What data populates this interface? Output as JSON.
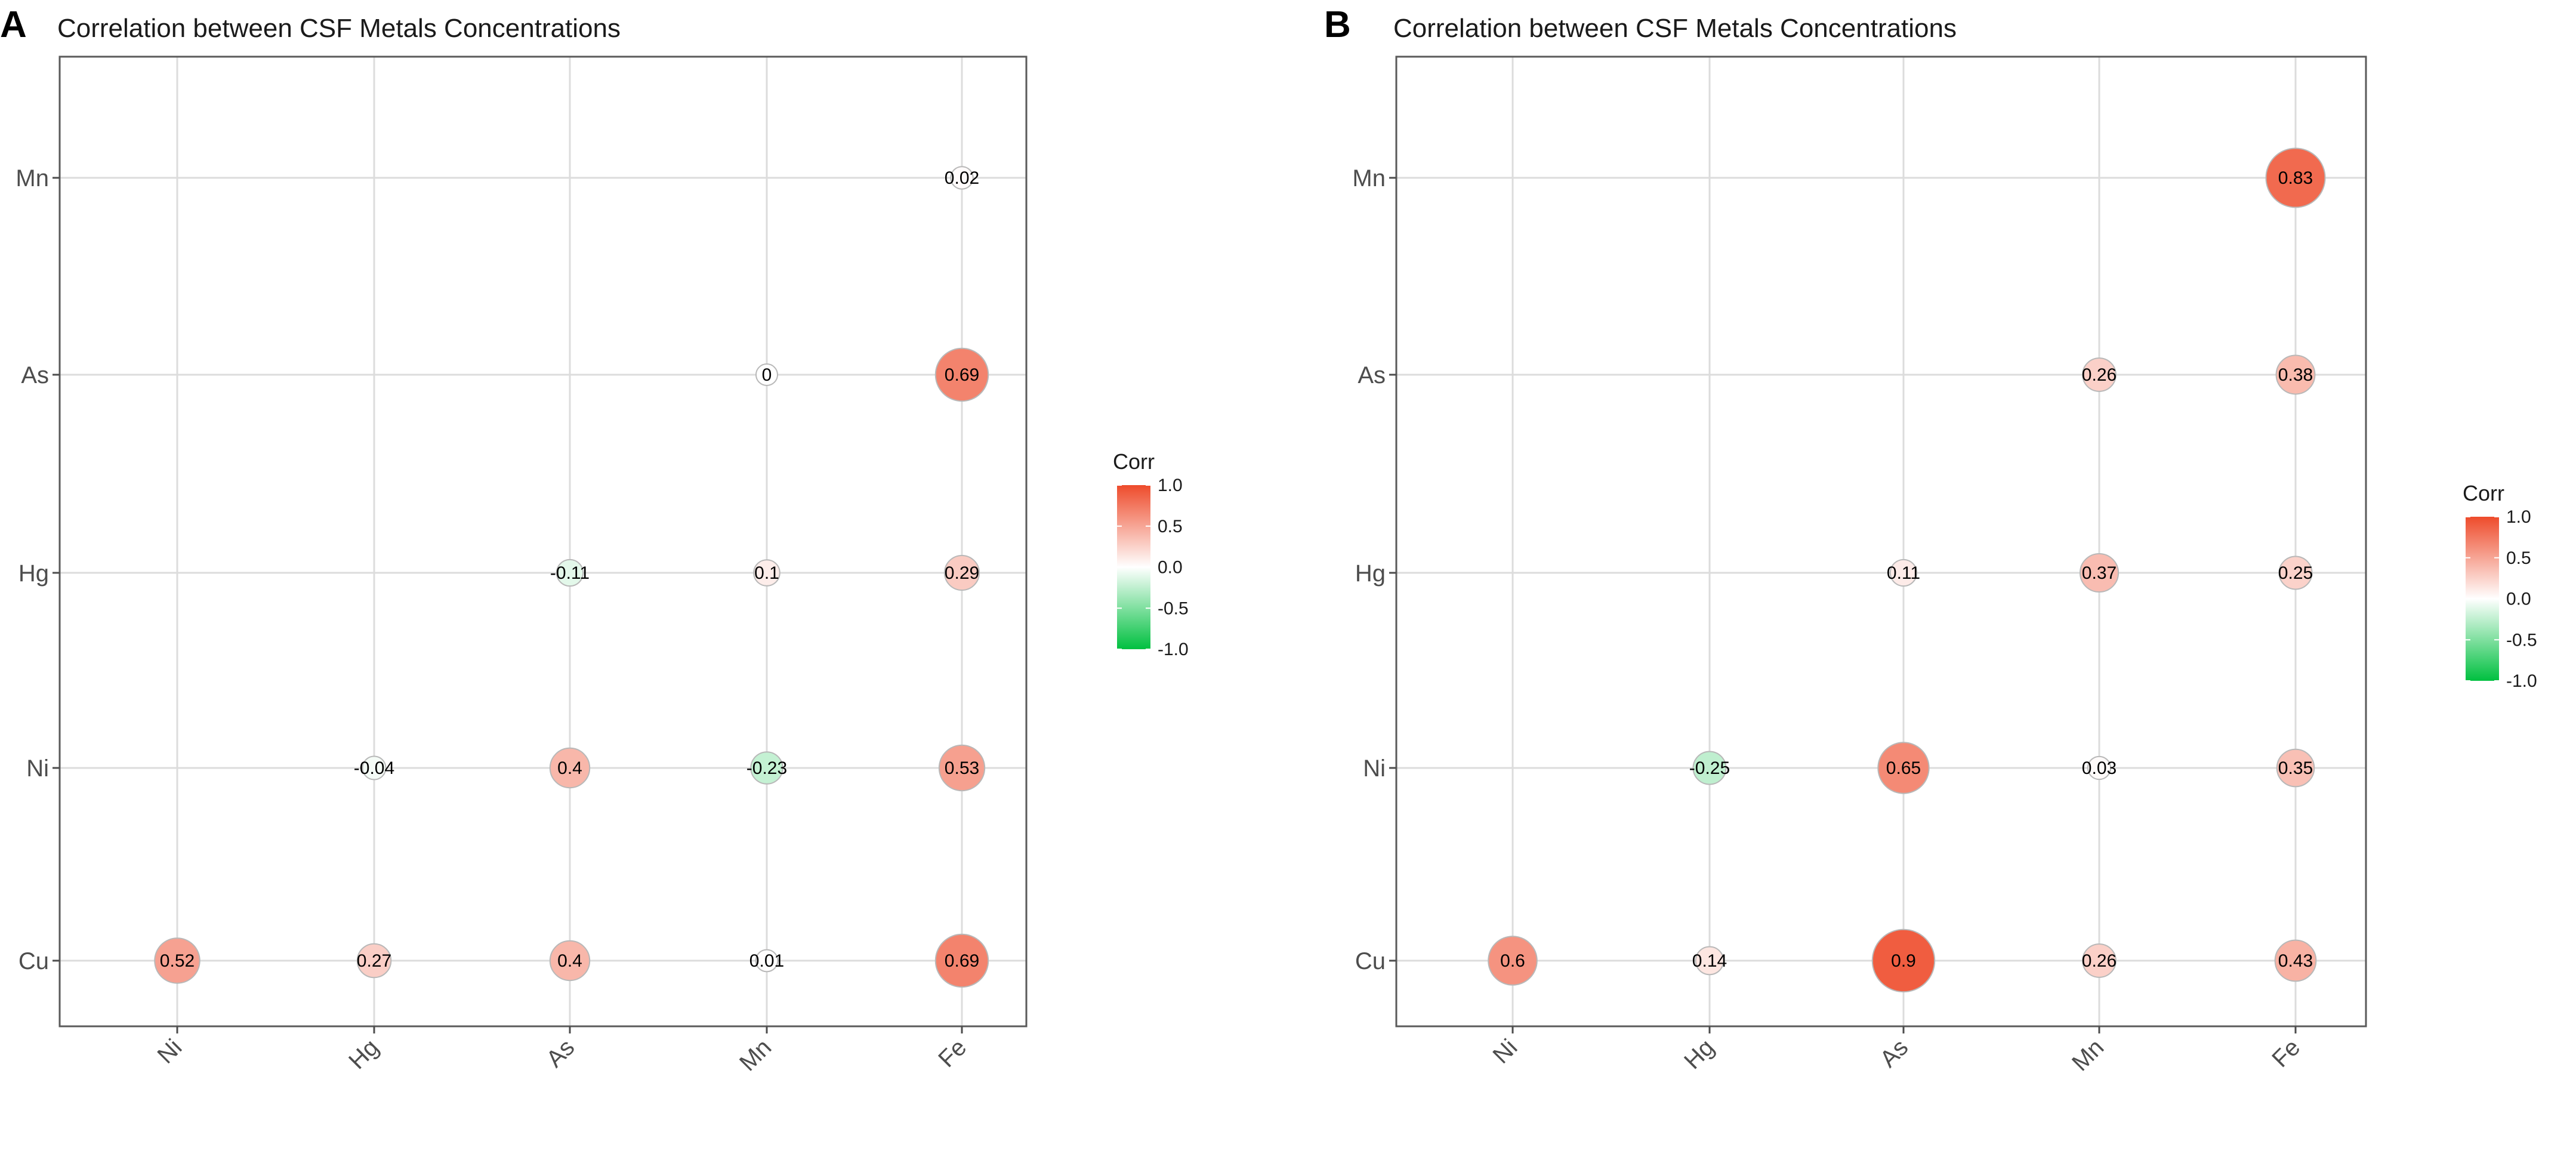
{
  "colors": {
    "positive": "#EE4B2B",
    "neutral": "#FFFFFF",
    "negative": "#00C040",
    "grid": "#DCDCDC"
  },
  "chart_data": [
    {
      "type": "scatter",
      "panel": "A",
      "title": "Correlation between CSF Metals Concentrations",
      "x_categories": [
        "Ni",
        "Hg",
        "As",
        "Mn",
        "Fe"
      ],
      "y_categories": [
        "Cu",
        "Ni",
        "Hg",
        "As",
        "Mn"
      ],
      "legend": {
        "title": "Corr",
        "ticks": [
          "1.0",
          "0.5",
          "0.0",
          "-0.5",
          "-1.0"
        ],
        "range": [
          -1,
          1
        ],
        "position": "right"
      },
      "points": [
        {
          "x": "Fe",
          "y": "Mn",
          "value": 0.02,
          "label": "0.02"
        },
        {
          "x": "Mn",
          "y": "As",
          "value": 0,
          "label": "0"
        },
        {
          "x": "Fe",
          "y": "As",
          "value": 0.69,
          "label": "0.69"
        },
        {
          "x": "As",
          "y": "Hg",
          "value": -0.11,
          "label": "-0.11"
        },
        {
          "x": "Mn",
          "y": "Hg",
          "value": 0.1,
          "label": "0.1"
        },
        {
          "x": "Fe",
          "y": "Hg",
          "value": 0.29,
          "label": "0.29"
        },
        {
          "x": "Hg",
          "y": "Ni",
          "value": -0.04,
          "label": "-0.04"
        },
        {
          "x": "As",
          "y": "Ni",
          "value": 0.4,
          "label": "0.4"
        },
        {
          "x": "Mn",
          "y": "Ni",
          "value": -0.23,
          "label": "-0.23"
        },
        {
          "x": "Fe",
          "y": "Ni",
          "value": 0.53,
          "label": "0.53"
        },
        {
          "x": "Ni",
          "y": "Cu",
          "value": 0.52,
          "label": "0.52"
        },
        {
          "x": "Hg",
          "y": "Cu",
          "value": 0.27,
          "label": "0.27"
        },
        {
          "x": "As",
          "y": "Cu",
          "value": 0.4,
          "label": "0.4"
        },
        {
          "x": "Mn",
          "y": "Cu",
          "value": 0.01,
          "label": "0.01"
        },
        {
          "x": "Fe",
          "y": "Cu",
          "value": 0.69,
          "label": "0.69"
        }
      ]
    },
    {
      "type": "scatter",
      "panel": "B",
      "title": "Correlation between CSF Metals Concentrations",
      "x_categories": [
        "Ni",
        "Hg",
        "As",
        "Mn",
        "Fe"
      ],
      "y_categories": [
        "Cu",
        "Ni",
        "Hg",
        "As",
        "Mn"
      ],
      "legend": {
        "title": "Corr",
        "ticks": [
          "1.0",
          "0.5",
          "0.0",
          "-0.5",
          "-1.0"
        ],
        "range": [
          -1,
          1
        ],
        "position": "right"
      },
      "points": [
        {
          "x": "Fe",
          "y": "Mn",
          "value": 0.83,
          "label": "0.83"
        },
        {
          "x": "Mn",
          "y": "As",
          "value": 0.26,
          "label": "0.26"
        },
        {
          "x": "Fe",
          "y": "As",
          "value": 0.38,
          "label": "0.38"
        },
        {
          "x": "As",
          "y": "Hg",
          "value": 0.11,
          "label": "0.11"
        },
        {
          "x": "Mn",
          "y": "Hg",
          "value": 0.37,
          "label": "0.37"
        },
        {
          "x": "Fe",
          "y": "Hg",
          "value": 0.25,
          "label": "0.25"
        },
        {
          "x": "Hg",
          "y": "Ni",
          "value": -0.25,
          "label": "-0.25"
        },
        {
          "x": "As",
          "y": "Ni",
          "value": 0.65,
          "label": "0.65"
        },
        {
          "x": "Mn",
          "y": "Ni",
          "value": 0.03,
          "label": "0.03"
        },
        {
          "x": "Fe",
          "y": "Ni",
          "value": 0.35,
          "label": "0.35"
        },
        {
          "x": "Ni",
          "y": "Cu",
          "value": 0.6,
          "label": "0.6"
        },
        {
          "x": "Hg",
          "y": "Cu",
          "value": 0.14,
          "label": "0.14"
        },
        {
          "x": "As",
          "y": "Cu",
          "value": 0.9,
          "label": "0.9"
        },
        {
          "x": "Mn",
          "y": "Cu",
          "value": 0.26,
          "label": "0.26"
        },
        {
          "x": "Fe",
          "y": "Cu",
          "value": 0.43,
          "label": "0.43"
        }
      ]
    }
  ]
}
